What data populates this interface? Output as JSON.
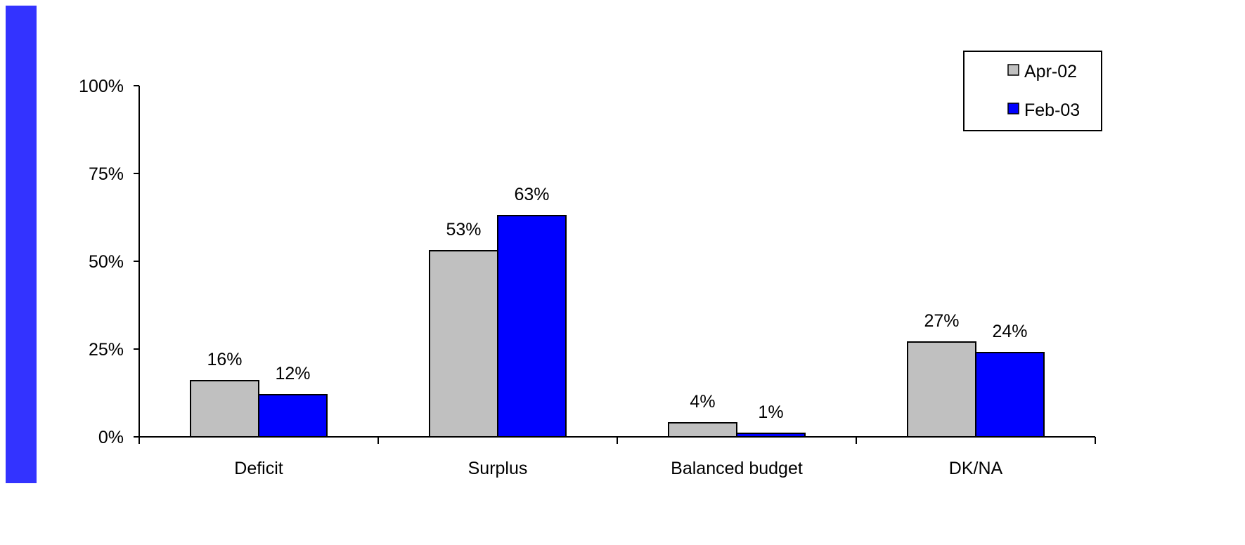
{
  "colors": {
    "accent": "#3333ff",
    "series": [
      "#c0c0c0",
      "#0000ff"
    ]
  },
  "chart_data": {
    "type": "bar",
    "categories": [
      "Deficit",
      "Surplus",
      "Balanced budget",
      "DK/NA"
    ],
    "series": [
      {
        "name": "Apr-02",
        "values": [
          16,
          53,
          4,
          27
        ],
        "labels": [
          "16%",
          "53%",
          "4%",
          "27%"
        ]
      },
      {
        "name": "Feb-03",
        "values": [
          12,
          63,
          1,
          24
        ],
        "labels": [
          "12%",
          "63%",
          "1%",
          "24%"
        ]
      }
    ],
    "yticks": [
      0,
      25,
      50,
      75,
      100
    ],
    "ytick_labels": [
      "0%",
      "25%",
      "50%",
      "75%",
      "100%"
    ],
    "ylim": [
      0,
      100
    ],
    "grid": false,
    "legend": "top-right",
    "title": "",
    "xlabel": "",
    "ylabel": ""
  }
}
